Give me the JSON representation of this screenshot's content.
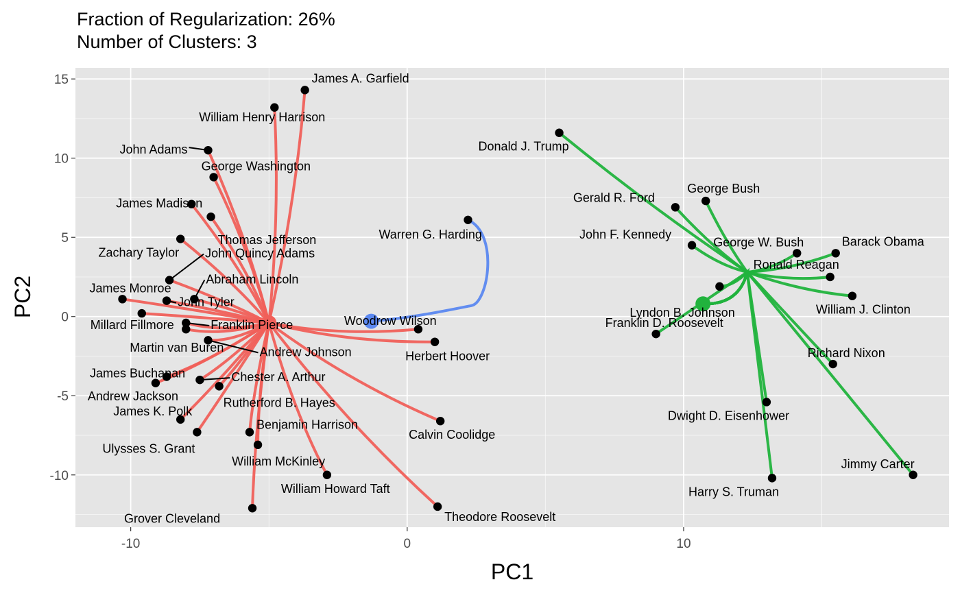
{
  "title": {
    "line1": "Fraction of Regularization: 26%",
    "line2": "Number of Clusters: 3"
  },
  "colors": {
    "panel": "#e5e5e5",
    "grid_major": "#ffffff",
    "cluster1": "#f0605a",
    "cluster2": "#5b88f0",
    "cluster3": "#21b33d",
    "point": "#000000"
  },
  "chart_data": {
    "type": "scatter",
    "xlabel": "PC1",
    "ylabel": "PC2",
    "xlim": [
      -12.0,
      19.6
    ],
    "ylim": [
      -13.3,
      15.7
    ],
    "xticks": [
      -10,
      0,
      10
    ],
    "yticks": [
      -10,
      -5,
      0,
      5,
      10,
      15
    ],
    "xtick_labels": [
      "-10",
      "0",
      "10"
    ],
    "ytick_labels": [
      "-10",
      "-5",
      "0",
      "5",
      "10",
      "15"
    ],
    "grid": true,
    "legend": "none",
    "centroids": [
      {
        "cluster": 1,
        "x": -5.0,
        "y": -0.4
      },
      {
        "cluster": 2,
        "x": -1.3,
        "y": -0.3
      },
      {
        "cluster": 3,
        "x": 10.7,
        "y": 0.8
      }
    ],
    "points": [
      {
        "name": "James A. Garfield",
        "x": -3.7,
        "y": 14.3,
        "cluster": 1
      },
      {
        "name": "William Henry Harrison",
        "x": -4.8,
        "y": 13.2,
        "cluster": 1
      },
      {
        "name": "John Adams",
        "x": -7.2,
        "y": 10.5,
        "cluster": 1
      },
      {
        "name": "George Washington",
        "x": -7.0,
        "y": 8.8,
        "cluster": 1
      },
      {
        "name": "James Madison",
        "x": -7.8,
        "y": 7.1,
        "cluster": 1
      },
      {
        "name": "Thomas Jefferson",
        "x": -7.1,
        "y": 6.3,
        "cluster": 1
      },
      {
        "name": "Zachary Taylor",
        "x": -8.2,
        "y": 4.9,
        "cluster": 1
      },
      {
        "name": "John Quincy Adams",
        "x": -8.6,
        "y": 2.3,
        "cluster": 1
      },
      {
        "name": "Abraham Lincoln",
        "x": -7.7,
        "y": 1.1,
        "cluster": 1
      },
      {
        "name": "James Monroe",
        "x": -10.3,
        "y": 1.1,
        "cluster": 1
      },
      {
        "name": "John Tyler",
        "x": -8.7,
        "y": 1.0,
        "cluster": 1
      },
      {
        "name": "Millard Fillmore",
        "x": -9.6,
        "y": 0.2,
        "cluster": 1
      },
      {
        "name": "Franklin Pierce",
        "x": -8.0,
        "y": -0.4,
        "cluster": 1
      },
      {
        "name": "Martin van Buren",
        "x": -8.0,
        "y": -0.8,
        "cluster": 1
      },
      {
        "name": "Andrew Johnson",
        "x": -7.2,
        "y": -1.5,
        "cluster": 1
      },
      {
        "name": "James Buchanan",
        "x": -8.7,
        "y": -3.8,
        "cluster": 1
      },
      {
        "name": "Chester A. Arthur",
        "x": -7.5,
        "y": -4.0,
        "cluster": 1
      },
      {
        "name": "Andrew Jackson",
        "x": -9.1,
        "y": -4.2,
        "cluster": 1
      },
      {
        "name": "Rutherford B. Hayes",
        "x": -6.8,
        "y": -4.4,
        "cluster": 1
      },
      {
        "name": "James K. Polk",
        "x": -8.2,
        "y": -6.5,
        "cluster": 1
      },
      {
        "name": "Ulysses S. Grant",
        "x": -7.6,
        "y": -7.3,
        "cluster": 1
      },
      {
        "name": "Benjamin Harrison",
        "x": -5.7,
        "y": -7.3,
        "cluster": 1
      },
      {
        "name": "William McKinley",
        "x": -5.4,
        "y": -8.1,
        "cluster": 1
      },
      {
        "name": "William Howard Taft",
        "x": -2.9,
        "y": -10.0,
        "cluster": 1
      },
      {
        "name": "Grover Cleveland",
        "x": -5.6,
        "y": -12.1,
        "cluster": 1
      },
      {
        "name": "Theodore Roosevelt",
        "x": 1.1,
        "y": -12.0,
        "cluster": 1
      },
      {
        "name": "Calvin Coolidge",
        "x": 1.2,
        "y": -6.6,
        "cluster": 1
      },
      {
        "name": "Herbert Hoover",
        "x": 1.0,
        "y": -1.6,
        "cluster": 1
      },
      {
        "name": "Woodrow Wilson",
        "x": 0.4,
        "y": -0.8,
        "cluster": 1
      },
      {
        "name": "Warren G. Harding",
        "x": 2.2,
        "y": 6.1,
        "cluster": 2
      },
      {
        "name": "Donald J. Trump",
        "x": 5.5,
        "y": 11.6,
        "cluster": 3
      },
      {
        "name": "Gerald R. Ford",
        "x": 9.7,
        "y": 6.9,
        "cluster": 3
      },
      {
        "name": "George Bush",
        "x": 10.8,
        "y": 7.3,
        "cluster": 3
      },
      {
        "name": "John F. Kennedy",
        "x": 10.3,
        "y": 4.5,
        "cluster": 3
      },
      {
        "name": "George W. Bush",
        "x": 14.1,
        "y": 4.0,
        "cluster": 3
      },
      {
        "name": "Barack Obama",
        "x": 15.5,
        "y": 4.0,
        "cluster": 3
      },
      {
        "name": "Ronald Reagan",
        "x": 15.3,
        "y": 2.5,
        "cluster": 3
      },
      {
        "name": "Lyndon B. Johnson",
        "x": 11.3,
        "y": 1.9,
        "cluster": 3
      },
      {
        "name": "William J. Clinton",
        "x": 16.1,
        "y": 1.3,
        "cluster": 3
      },
      {
        "name": "Franklin D. Roosevelt",
        "x": 9.0,
        "y": -1.1,
        "cluster": 3
      },
      {
        "name": "Richard Nixon",
        "x": 15.4,
        "y": -3.0,
        "cluster": 3
      },
      {
        "name": "Dwight D. Eisenhower",
        "x": 13.0,
        "y": -5.4,
        "cluster": 3
      },
      {
        "name": "Harry S. Truman",
        "x": 13.2,
        "y": -10.2,
        "cluster": 3
      },
      {
        "name": "Jimmy Carter",
        "x": 18.3,
        "y": -10.0,
        "cluster": 3
      }
    ]
  }
}
